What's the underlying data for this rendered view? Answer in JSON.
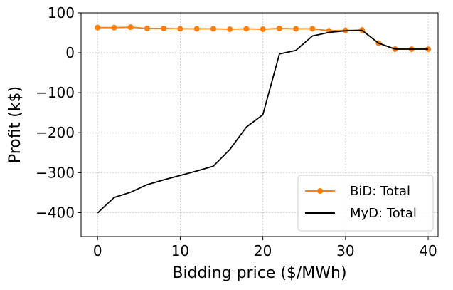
{
  "chart_data": {
    "type": "line",
    "title": "",
    "xlabel": "Bidding price ($/MWh)",
    "ylabel": "Profit (k$)",
    "xlim": [
      -2,
      41.2
    ],
    "ylim": [
      -460,
      100
    ],
    "xticks": [
      0,
      10,
      20,
      30,
      40
    ],
    "xtick_labels": [
      "0",
      "10",
      "20",
      "30",
      "40"
    ],
    "yticks": [
      100,
      0,
      -100,
      -200,
      -300,
      -400
    ],
    "ytick_labels": [
      "100",
      "0",
      "−100",
      "−200",
      "−300",
      "−400"
    ],
    "grid": true,
    "legend_position": "lower-right",
    "series": [
      {
        "name": "BiD: Total",
        "color": "#ff7f0e",
        "marker": "circle",
        "x": [
          0,
          2,
          4,
          6,
          8,
          10,
          12,
          14,
          16,
          18,
          20,
          22,
          24,
          26,
          28,
          30,
          32,
          34,
          36,
          38,
          40
        ],
        "y": [
          63,
          63,
          64,
          61,
          61,
          60,
          60,
          60,
          59,
          60,
          59,
          61,
          60,
          60,
          55,
          56,
          57,
          24,
          9,
          9,
          9
        ]
      },
      {
        "name": "MyD: Total",
        "color": "#000000",
        "marker": "none",
        "x": [
          0,
          2,
          4,
          6,
          8,
          10,
          12,
          14,
          16,
          18,
          20,
          22,
          24,
          26,
          28,
          30,
          32,
          34,
          36,
          38,
          40
        ],
        "y": [
          -401,
          -362,
          -349,
          -330,
          -318,
          -307,
          -296,
          -284,
          -242,
          -186,
          -155,
          -3,
          6,
          42,
          51,
          55,
          56,
          24,
          9,
          9,
          9
        ]
      }
    ]
  }
}
